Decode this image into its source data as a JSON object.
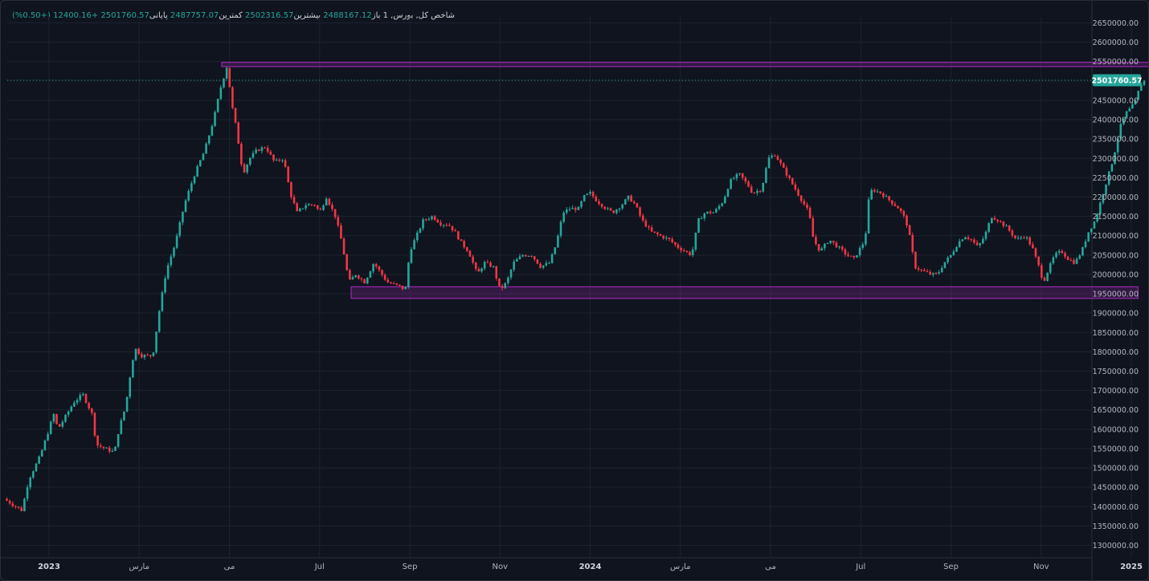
{
  "legend": {
    "symbol": "شاخص کل, بورس, 1",
    "open_label": "باز",
    "open": "2488167.12",
    "high_label": "بیشترین",
    "high": "2502316.57",
    "low_label": "کمترین",
    "low": "2487757.07",
    "close_label": "پایانی",
    "close": "2501760.57",
    "change": "+12400.16 (+0.50%)"
  },
  "last_price_label": "2501760.57",
  "colors": {
    "up": "#26a69a",
    "down": "#f23645",
    "zone": "#9c27b0",
    "background": "#0f141e"
  },
  "chart_data": {
    "type": "candlestick",
    "ylim": [
      1270000,
      2670000
    ],
    "y_ticks": [
      "1300000.00",
      "1350000.00",
      "1400000.00",
      "1450000.00",
      "1500000.00",
      "1550000.00",
      "1600000.00",
      "1650000.00",
      "1700000.00",
      "1750000.00",
      "1800000.00",
      "1850000.00",
      "1900000.00",
      "1950000.00",
      "2000000.00",
      "2050000.00",
      "2100000.00",
      "2150000.00",
      "2200000.00",
      "2250000.00",
      "2300000.00",
      "2350000.00",
      "2400000.00",
      "2450000.00",
      "2500000.00",
      "2550000.00",
      "2600000.00",
      "2650000.00"
    ],
    "x_labels": [
      {
        "label": "2023",
        "t": 0.0,
        "bold": true
      },
      {
        "label": "مارس",
        "t": 2.0,
        "bold": false
      },
      {
        "label": "می",
        "t": 4.0,
        "bold": false
      },
      {
        "label": "Jul",
        "t": 6.0,
        "bold": false
      },
      {
        "label": "Sep",
        "t": 8.0,
        "bold": false
      },
      {
        "label": "Nov",
        "t": 10.0,
        "bold": false
      },
      {
        "label": "2024",
        "t": 12.0,
        "bold": true
      },
      {
        "label": "مارس",
        "t": 14.0,
        "bold": false
      },
      {
        "label": "می",
        "t": 16.0,
        "bold": false
      },
      {
        "label": "Jul",
        "t": 18.0,
        "bold": false
      },
      {
        "label": "Sep",
        "t": 20.0,
        "bold": false
      },
      {
        "label": "Nov",
        "t": 22.0,
        "bold": false
      },
      {
        "label": "2025",
        "t": 24.0,
        "bold": true
      }
    ],
    "price_path": [
      [
        -1.0,
        1420000
      ],
      [
        -0.6,
        1390000
      ],
      [
        -0.45,
        1470000
      ],
      [
        -0.2,
        1530000
      ],
      [
        0.0,
        1600000
      ],
      [
        0.1,
        1640000
      ],
      [
        0.2,
        1600000
      ],
      [
        0.35,
        1630000
      ],
      [
        0.55,
        1670000
      ],
      [
        0.75,
        1690000
      ],
      [
        0.95,
        1640000
      ],
      [
        1.05,
        1560000
      ],
      [
        1.25,
        1550000
      ],
      [
        1.45,
        1540000
      ],
      [
        1.55,
        1600000
      ],
      [
        1.7,
        1660000
      ],
      [
        1.8,
        1740000
      ],
      [
        1.9,
        1810000
      ],
      [
        2.05,
        1790000
      ],
      [
        2.3,
        1790000
      ],
      [
        2.45,
        1910000
      ],
      [
        2.6,
        2010000
      ],
      [
        2.8,
        2080000
      ],
      [
        3.0,
        2180000
      ],
      [
        3.2,
        2250000
      ],
      [
        3.45,
        2320000
      ],
      [
        3.65,
        2400000
      ],
      [
        3.8,
        2480000
      ],
      [
        3.95,
        2540000
      ],
      [
        4.05,
        2440000
      ],
      [
        4.15,
        2380000
      ],
      [
        4.3,
        2260000
      ],
      [
        4.45,
        2300000
      ],
      [
        4.6,
        2320000
      ],
      [
        4.8,
        2330000
      ],
      [
        5.0,
        2290000
      ],
      [
        5.2,
        2300000
      ],
      [
        5.35,
        2210000
      ],
      [
        5.5,
        2160000
      ],
      [
        5.7,
        2180000
      ],
      [
        5.9,
        2180000
      ],
      [
        6.0,
        2160000
      ],
      [
        6.15,
        2200000
      ],
      [
        6.35,
        2150000
      ],
      [
        6.5,
        2080000
      ],
      [
        6.65,
        1980000
      ],
      [
        6.8,
        2000000
      ],
      [
        7.0,
        1980000
      ],
      [
        7.2,
        2030000
      ],
      [
        7.5,
        1980000
      ],
      [
        7.75,
        1970000
      ],
      [
        7.9,
        1960000
      ],
      [
        8.0,
        2060000
      ],
      [
        8.15,
        2100000
      ],
      [
        8.3,
        2140000
      ],
      [
        8.5,
        2150000
      ],
      [
        8.7,
        2130000
      ],
      [
        8.85,
        2130000
      ],
      [
        9.0,
        2110000
      ],
      [
        9.15,
        2080000
      ],
      [
        9.3,
        2060000
      ],
      [
        9.5,
        2000000
      ],
      [
        9.65,
        2030000
      ],
      [
        9.85,
        2020000
      ],
      [
        10.0,
        1960000
      ],
      [
        10.15,
        1980000
      ],
      [
        10.3,
        2030000
      ],
      [
        10.5,
        2050000
      ],
      [
        10.7,
        2050000
      ],
      [
        10.9,
        2020000
      ],
      [
        11.1,
        2030000
      ],
      [
        11.25,
        2080000
      ],
      [
        11.4,
        2160000
      ],
      [
        11.55,
        2170000
      ],
      [
        11.75,
        2170000
      ],
      [
        11.85,
        2200000
      ],
      [
        12.0,
        2210000
      ],
      [
        12.15,
        2190000
      ],
      [
        12.35,
        2170000
      ],
      [
        12.5,
        2160000
      ],
      [
        12.7,
        2180000
      ],
      [
        12.85,
        2200000
      ],
      [
        13.0,
        2180000
      ],
      [
        13.15,
        2140000
      ],
      [
        13.35,
        2110000
      ],
      [
        13.55,
        2100000
      ],
      [
        13.75,
        2090000
      ],
      [
        13.95,
        2070000
      ],
      [
        14.1,
        2060000
      ],
      [
        14.25,
        2050000
      ],
      [
        14.4,
        2140000
      ],
      [
        14.55,
        2160000
      ],
      [
        14.75,
        2160000
      ],
      [
        14.95,
        2190000
      ],
      [
        15.1,
        2240000
      ],
      [
        15.3,
        2260000
      ],
      [
        15.5,
        2230000
      ],
      [
        15.6,
        2210000
      ],
      [
        15.8,
        2220000
      ],
      [
        15.95,
        2300000
      ],
      [
        16.1,
        2310000
      ],
      [
        16.25,
        2280000
      ],
      [
        16.45,
        2240000
      ],
      [
        16.65,
        2200000
      ],
      [
        16.85,
        2160000
      ],
      [
        16.95,
        2090000
      ],
      [
        17.1,
        2060000
      ],
      [
        17.3,
        2090000
      ],
      [
        17.5,
        2070000
      ],
      [
        17.7,
        2050000
      ],
      [
        17.85,
        2040000
      ],
      [
        18.0,
        2070000
      ],
      [
        18.1,
        2090000
      ],
      [
        18.15,
        2180000
      ],
      [
        18.25,
        2220000
      ],
      [
        18.45,
        2210000
      ],
      [
        18.65,
        2190000
      ],
      [
        18.85,
        2170000
      ],
      [
        19.0,
        2140000
      ],
      [
        19.1,
        2090000
      ],
      [
        19.2,
        2020000
      ],
      [
        19.35,
        2010000
      ],
      [
        19.55,
        2000000
      ],
      [
        19.7,
        2000000
      ],
      [
        19.85,
        2030000
      ],
      [
        20.0,
        2050000
      ],
      [
        20.15,
        2080000
      ],
      [
        20.3,
        2100000
      ],
      [
        20.45,
        2090000
      ],
      [
        20.6,
        2070000
      ],
      [
        20.75,
        2100000
      ],
      [
        20.9,
        2150000
      ],
      [
        21.05,
        2140000
      ],
      [
        21.25,
        2120000
      ],
      [
        21.45,
        2090000
      ],
      [
        21.65,
        2100000
      ],
      [
        21.8,
        2070000
      ],
      [
        21.95,
        2020000
      ],
      [
        22.05,
        1980000
      ],
      [
        22.15,
        2010000
      ],
      [
        22.3,
        2050000
      ],
      [
        22.45,
        2060000
      ],
      [
        22.6,
        2040000
      ],
      [
        22.75,
        2030000
      ],
      [
        22.9,
        2060000
      ],
      [
        23.05,
        2110000
      ],
      [
        23.2,
        2140000
      ],
      [
        23.35,
        2200000
      ],
      [
        23.5,
        2260000
      ],
      [
        23.6,
        2300000
      ],
      [
        23.75,
        2380000
      ],
      [
        23.9,
        2420000
      ],
      [
        24.0,
        2430000
      ],
      [
        24.1,
        2450000
      ],
      [
        24.2,
        2490000
      ],
      [
        24.3,
        2501760
      ]
    ],
    "zones": [
      {
        "t_start": 3.83,
        "t_end": 25.2,
        "y_top": 2548000,
        "y_bottom": 2537000
      },
      {
        "t_start": 6.7,
        "t_end": 24.15,
        "y_top": 1968000,
        "y_bottom": 1938000
      }
    ],
    "last_price": 2501760.57
  }
}
